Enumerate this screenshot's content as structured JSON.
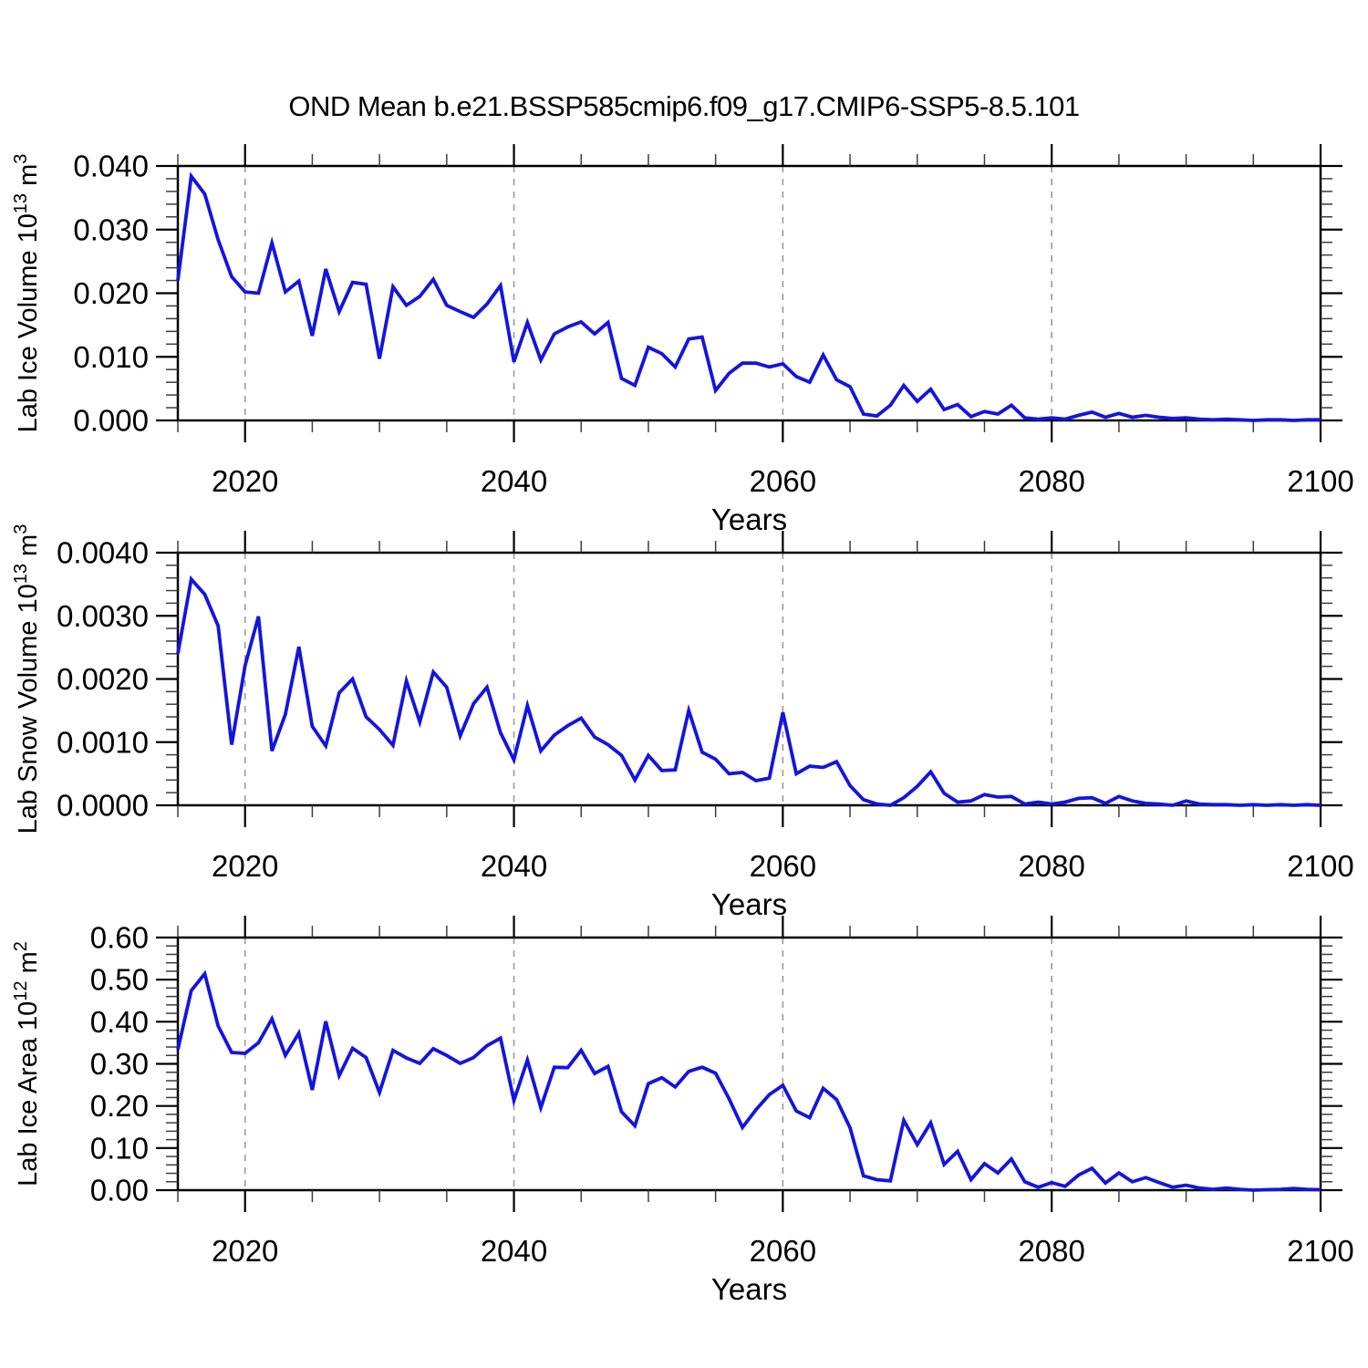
{
  "page": {
    "title": "OND Mean b.e21.BSSP585cmip6.f09_g17.CMIP6-SSP5-8.5.101",
    "background": "#ffffff"
  },
  "style": {
    "line_color": "#1414e0",
    "grid_color": "#999999",
    "axis_color": "#000000",
    "minor_tick_color": "#3d3d3d",
    "text_color": "#000000"
  },
  "years": [
    2015,
    2016,
    2017,
    2018,
    2019,
    2020,
    2021,
    2022,
    2023,
    2024,
    2025,
    2026,
    2027,
    2028,
    2029,
    2030,
    2031,
    2032,
    2033,
    2034,
    2035,
    2036,
    2037,
    2038,
    2039,
    2040,
    2041,
    2042,
    2043,
    2044,
    2045,
    2046,
    2047,
    2048,
    2049,
    2050,
    2051,
    2052,
    2053,
    2054,
    2055,
    2056,
    2057,
    2058,
    2059,
    2060,
    2061,
    2062,
    2063,
    2064,
    2065,
    2066,
    2067,
    2068,
    2069,
    2070,
    2071,
    2072,
    2073,
    2074,
    2075,
    2076,
    2077,
    2078,
    2079,
    2080,
    2081,
    2082,
    2083,
    2084,
    2085,
    2086,
    2087,
    2088,
    2089,
    2090,
    2091,
    2092,
    2093,
    2094,
    2095,
    2096,
    2097,
    2098,
    2099,
    2100
  ],
  "chart_data": [
    {
      "type": "line",
      "x_ref": "years",
      "xlabel": "Years",
      "ylabel": "Lab Ice Volume 10^13 m^3",
      "ylabel_parts": [
        {
          "t": "Lab Ice Volume 10"
        },
        {
          "t": "13",
          "sup": true
        },
        {
          "t": " m"
        },
        {
          "t": "3",
          "sup": true
        }
      ],
      "xlim": [
        2015,
        2100
      ],
      "ylim": [
        0.0,
        0.04
      ],
      "yticks": [
        0.0,
        0.01,
        0.02,
        0.03,
        0.04
      ],
      "ytick_labels": [
        "0.000",
        "0.010",
        "0.020",
        "0.030",
        "0.040"
      ],
      "y_minor_step": 0.002,
      "xticks": [
        2020,
        2040,
        2060,
        2080,
        2100
      ],
      "xtick_labels": [
        "2020",
        "2040",
        "2060",
        "2080",
        "2100"
      ],
      "x_minor_step": 5,
      "grid_years": [
        2020,
        2040,
        2060,
        2080
      ],
      "values": [
        0.022,
        0.0384,
        0.0356,
        0.0284,
        0.0226,
        0.0202,
        0.02,
        0.0279,
        0.0202,
        0.0219,
        0.0133,
        0.0238,
        0.0171,
        0.0217,
        0.0214,
        0.0097,
        0.021,
        0.0181,
        0.0195,
        0.0222,
        0.0181,
        0.0171,
        0.0162,
        0.0183,
        0.0212,
        0.0092,
        0.0154,
        0.0095,
        0.0136,
        0.0147,
        0.0155,
        0.0136,
        0.0154,
        0.0066,
        0.0055,
        0.0115,
        0.0105,
        0.0084,
        0.0128,
        0.0131,
        0.0047,
        0.0074,
        0.009,
        0.009,
        0.0084,
        0.0089,
        0.0069,
        0.006,
        0.0103,
        0.0064,
        0.0053,
        0.001,
        0.0007,
        0.0024,
        0.0055,
        0.003,
        0.0049,
        0.0017,
        0.0025,
        0.0006,
        0.0014,
        0.001,
        0.0024,
        0.0004,
        0.0002,
        0.0004,
        0.0002,
        0.0008,
        0.0013,
        0.0005,
        0.0011,
        0.0005,
        0.0008,
        0.0005,
        0.0003,
        0.0004,
        0.0002,
        0.0001,
        0.0002,
        0.0001,
        0.0,
        0.0001,
        0.0001,
        0.0,
        0.0001,
        0.0001
      ]
    },
    {
      "type": "line",
      "x_ref": "years",
      "xlabel": "Years",
      "ylabel": "Lab Snow Volume 10^13 m^3",
      "ylabel_parts": [
        {
          "t": "Lab Snow Volume 10"
        },
        {
          "t": "13",
          "sup": true
        },
        {
          "t": " m"
        },
        {
          "t": "3",
          "sup": true
        }
      ],
      "xlim": [
        2015,
        2100
      ],
      "ylim": [
        0.0,
        0.004
      ],
      "yticks": [
        0.0,
        0.001,
        0.002,
        0.003,
        0.004
      ],
      "ytick_labels": [
        "0.0000",
        "0.0010",
        "0.0020",
        "0.0030",
        "0.0040"
      ],
      "y_minor_step": 0.0002,
      "xticks": [
        2020,
        2040,
        2060,
        2080,
        2100
      ],
      "xtick_labels": [
        "2020",
        "2040",
        "2060",
        "2080",
        "2100"
      ],
      "x_minor_step": 5,
      "grid_years": [
        2020,
        2040,
        2060,
        2080
      ],
      "values": [
        0.0024,
        0.00358,
        0.00334,
        0.00284,
        0.00096,
        0.00221,
        0.00299,
        0.00086,
        0.00144,
        0.00251,
        0.00125,
        0.00094,
        0.00178,
        0.002,
        0.0014,
        0.0012,
        0.00095,
        0.00197,
        0.00132,
        0.00211,
        0.00187,
        0.0011,
        0.00161,
        0.00187,
        0.00115,
        0.00072,
        0.00158,
        0.00086,
        0.00111,
        0.00126,
        0.00138,
        0.00108,
        0.00096,
        0.00079,
        0.0004,
        0.00079,
        0.00055,
        0.00056,
        0.0015,
        0.00084,
        0.00073,
        0.0005,
        0.00052,
        0.00039,
        0.00043,
        0.00147,
        0.0005,
        0.00062,
        0.0006,
        0.00069,
        0.00031,
        9e-05,
        2e-05,
        0.0,
        0.00012,
        0.0003,
        0.00053,
        0.00019,
        5e-05,
        7e-05,
        0.00017,
        0.00013,
        0.00014,
        2e-05,
        5e-05,
        2e-05,
        5e-05,
        0.00011,
        0.00012,
        3e-05,
        0.00014,
        7e-05,
        3e-05,
        2e-05,
        0.0,
        7e-05,
        2e-05,
        1e-05,
        1e-05,
        0.0,
        1e-05,
        0.0,
        1e-05,
        0.0,
        1e-05,
        0.0
      ]
    },
    {
      "type": "line",
      "x_ref": "years",
      "xlabel": "Years",
      "ylabel": "Lab Ice Area 10^12 m^2",
      "ylabel_parts": [
        {
          "t": "Lab Ice Area 10"
        },
        {
          "t": "12",
          "sup": true
        },
        {
          "t": " m"
        },
        {
          "t": "2",
          "sup": true
        }
      ],
      "xlim": [
        2015,
        2100
      ],
      "ylim": [
        0.0,
        0.6
      ],
      "yticks": [
        0.0,
        0.1,
        0.2,
        0.3,
        0.4,
        0.5,
        0.6
      ],
      "ytick_labels": [
        "0.00",
        "0.10",
        "0.20",
        "0.30",
        "0.40",
        "0.50",
        "0.60"
      ],
      "y_minor_step": 0.02,
      "xticks": [
        2020,
        2040,
        2060,
        2080,
        2100
      ],
      "xtick_labels": [
        "2020",
        "2040",
        "2060",
        "2080",
        "2100"
      ],
      "x_minor_step": 5,
      "grid_years": [
        2020,
        2040,
        2060,
        2080
      ],
      "values": [
        0.334,
        0.474,
        0.514,
        0.39,
        0.327,
        0.325,
        0.35,
        0.407,
        0.32,
        0.373,
        0.238,
        0.401,
        0.272,
        0.337,
        0.315,
        0.232,
        0.332,
        0.314,
        0.301,
        0.336,
        0.32,
        0.301,
        0.315,
        0.343,
        0.361,
        0.213,
        0.309,
        0.196,
        0.292,
        0.291,
        0.332,
        0.277,
        0.294,
        0.186,
        0.153,
        0.253,
        0.267,
        0.245,
        0.282,
        0.292,
        0.278,
        0.217,
        0.149,
        0.191,
        0.227,
        0.249,
        0.188,
        0.172,
        0.242,
        0.215,
        0.148,
        0.034,
        0.025,
        0.022,
        0.166,
        0.108,
        0.16,
        0.061,
        0.092,
        0.025,
        0.063,
        0.041,
        0.074,
        0.02,
        0.007,
        0.018,
        0.009,
        0.036,
        0.052,
        0.017,
        0.041,
        0.02,
        0.03,
        0.018,
        0.007,
        0.012,
        0.005,
        0.002,
        0.005,
        0.002,
        0.0,
        0.001,
        0.002,
        0.004,
        0.002,
        0.001
      ]
    }
  ]
}
